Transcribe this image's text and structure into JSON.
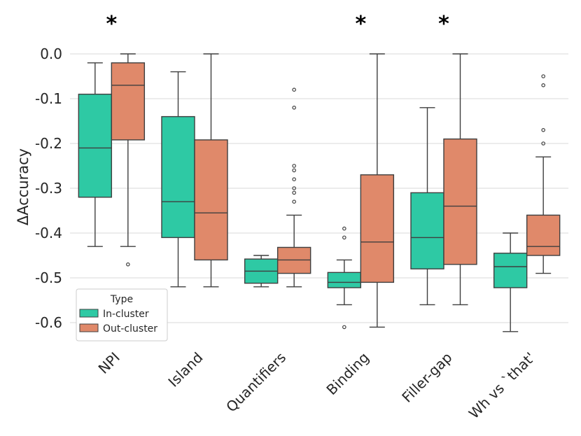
{
  "chart_data": {
    "type": "boxplot",
    "ylabel": "ΔAccuracy",
    "ylim": [
      -0.65,
      0.0
    ],
    "yticks": [
      "0.0",
      "-0.1",
      "-0.2",
      "-0.3",
      "-0.4",
      "-0.5",
      "-0.6"
    ],
    "ytick_values": [
      0.0,
      -0.1,
      -0.2,
      -0.3,
      -0.4,
      -0.5,
      -0.6
    ],
    "grid": "horizontal",
    "categories": [
      "NPI",
      "Island",
      "Quantifiers",
      "Binding",
      "Filler-gap",
      "Wh vs `that'"
    ],
    "significance": [
      "*",
      "",
      "",
      "*",
      "*",
      ""
    ],
    "legend": {
      "title": "Type",
      "position": "lower-left"
    },
    "series": [
      {
        "name": "In-cluster",
        "color": "#2ec9a4",
        "boxes": [
          {
            "whislo": -0.43,
            "q1": -0.32,
            "med": -0.21,
            "q3": -0.09,
            "whishi": -0.02,
            "fliers": []
          },
          {
            "whislo": -0.52,
            "q1": -0.41,
            "med": -0.33,
            "q3": -0.14,
            "whishi": -0.04,
            "fliers": []
          },
          {
            "whislo": -0.52,
            "q1": -0.512,
            "med": -0.485,
            "q3": -0.458,
            "whishi": -0.45,
            "fliers": []
          },
          {
            "whislo": -0.56,
            "q1": -0.522,
            "med": -0.51,
            "q3": -0.488,
            "whishi": -0.46,
            "fliers": [
              -0.39,
              -0.41,
              -0.61
            ]
          },
          {
            "whislo": -0.56,
            "q1": -0.48,
            "med": -0.41,
            "q3": -0.31,
            "whishi": -0.12,
            "fliers": []
          },
          {
            "whislo": -0.62,
            "q1": -0.522,
            "med": -0.475,
            "q3": -0.445,
            "whishi": -0.4,
            "fliers": []
          }
        ]
      },
      {
        "name": "Out-cluster",
        "color": "#e0896a",
        "boxes": [
          {
            "whislo": -0.43,
            "q1": -0.192,
            "med": -0.07,
            "q3": -0.02,
            "whishi": 0.0,
            "fliers": [
              -0.47
            ]
          },
          {
            "whislo": -0.52,
            "q1": -0.46,
            "med": -0.355,
            "q3": -0.192,
            "whishi": 0.0,
            "fliers": []
          },
          {
            "whislo": -0.52,
            "q1": -0.49,
            "med": -0.46,
            "q3": -0.432,
            "whishi": -0.36,
            "fliers": [
              -0.08,
              -0.12,
              -0.25,
              -0.26,
              -0.28,
              -0.3,
              -0.31,
              -0.33
            ]
          },
          {
            "whislo": -0.61,
            "q1": -0.51,
            "med": -0.42,
            "q3": -0.27,
            "whishi": 0.0,
            "fliers": []
          },
          {
            "whislo": -0.56,
            "q1": -0.47,
            "med": -0.34,
            "q3": -0.19,
            "whishi": 0.0,
            "fliers": []
          },
          {
            "whislo": -0.49,
            "q1": -0.45,
            "med": -0.43,
            "q3": -0.36,
            "whishi": -0.23,
            "fliers": [
              -0.05,
              -0.07,
              -0.17,
              -0.2
            ]
          }
        ]
      }
    ]
  }
}
